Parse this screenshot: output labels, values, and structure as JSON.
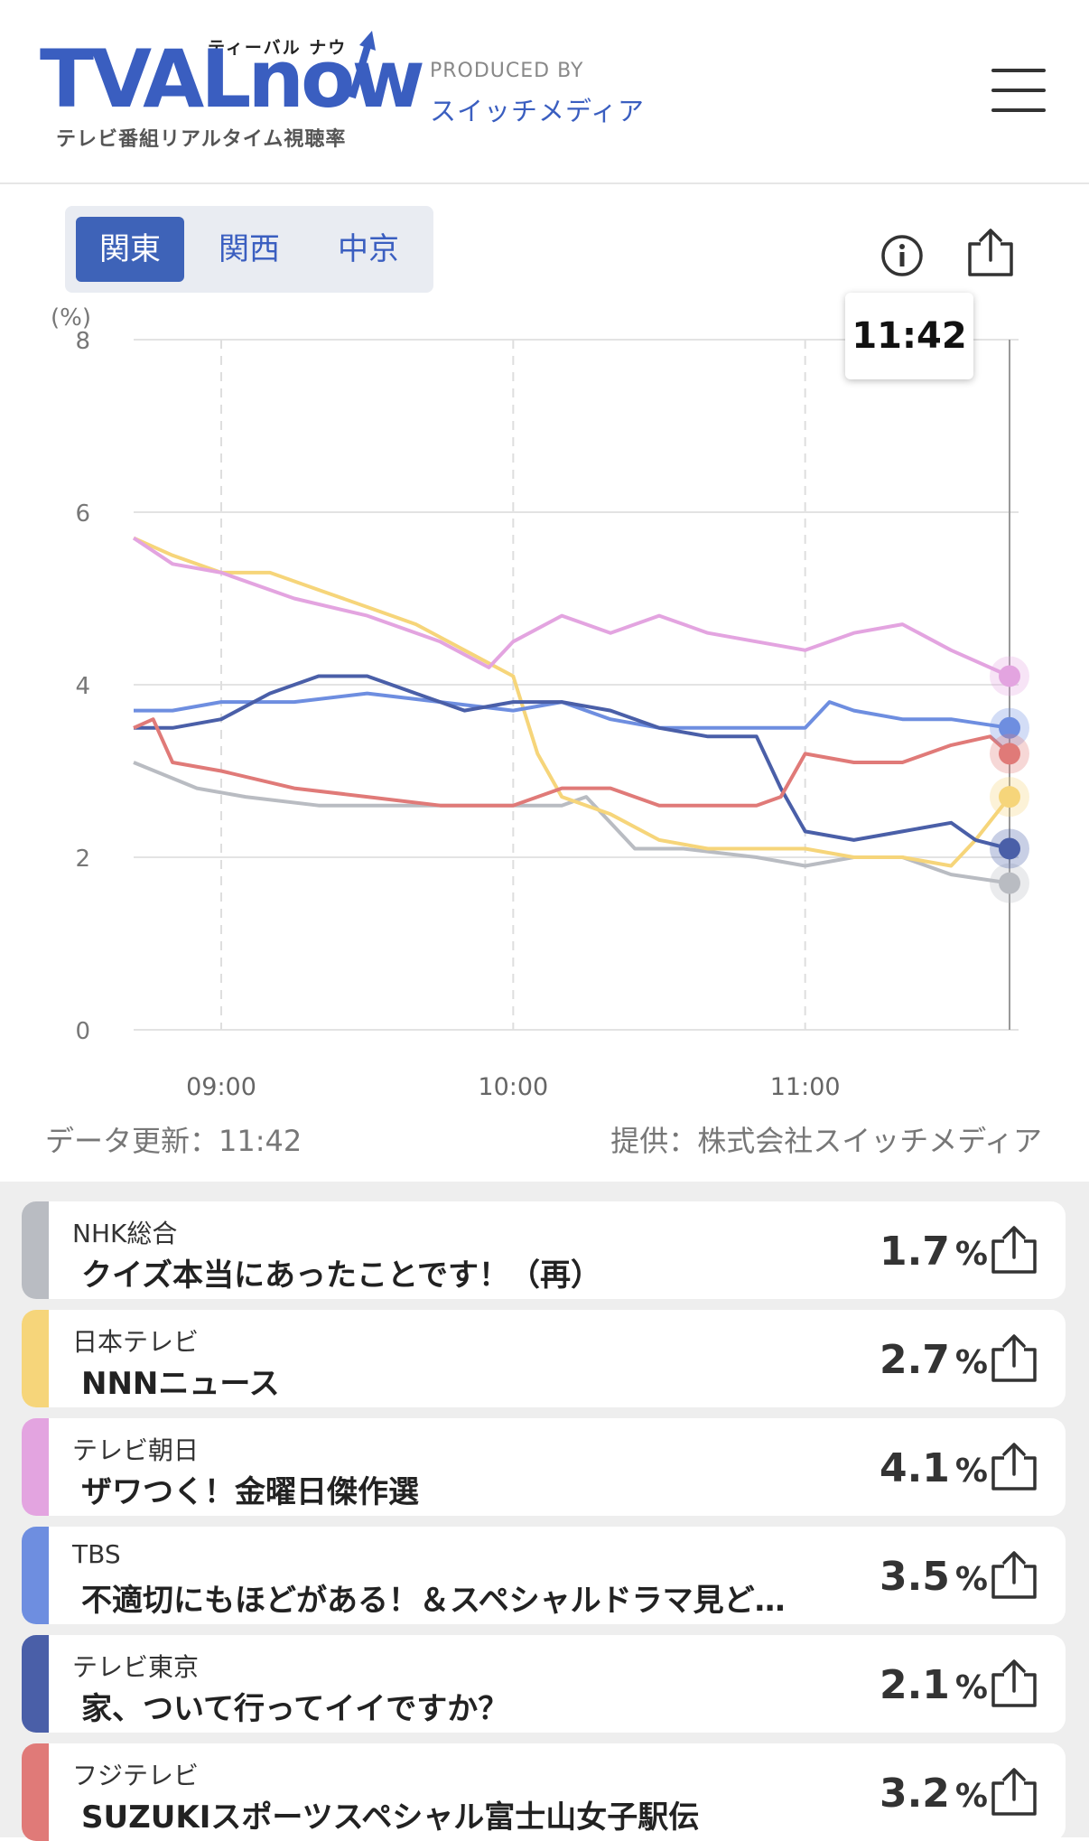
{
  "header": {
    "logo_main": "TVALnow",
    "logo_ruby": "ティーバル ナウ",
    "logo_sub": "テレビ番組リアルタイム視聴率",
    "produced_by": "PRODUCED BY",
    "producer": "スイッチメディア",
    "menu_icon": "hamburger-menu-icon"
  },
  "regions": [
    {
      "label": "関東",
      "active": true
    },
    {
      "label": "関西",
      "active": false
    },
    {
      "label": "中京",
      "active": false
    }
  ],
  "toolbar": {
    "info_icon": "info-circle-icon",
    "share_icon": "share-icon"
  },
  "tooltip_time": "11:42",
  "chart_data": {
    "type": "line",
    "ylabel": "(%)",
    "ylim": [
      0,
      8
    ],
    "yticks": [
      "0",
      "2",
      "4",
      "6",
      "8"
    ],
    "xticks": [
      "09:00",
      "10:00",
      "11:00"
    ],
    "xlim": [
      "08:42",
      "11:42"
    ],
    "grid": true,
    "series": [
      {
        "name": "NHK総合",
        "color": "#b9bcc2",
        "x": [
          "08:42",
          "08:55",
          "09:05",
          "09:20",
          "09:35",
          "09:50",
          "10:00",
          "10:10",
          "10:15",
          "10:25",
          "10:35",
          "10:50",
          "11:00",
          "11:10",
          "11:20",
          "11:30",
          "11:42"
        ],
        "y": [
          3.1,
          2.8,
          2.7,
          2.6,
          2.6,
          2.6,
          2.6,
          2.6,
          2.7,
          2.1,
          2.1,
          2.0,
          1.9,
          2.0,
          2.0,
          1.8,
          1.7
        ]
      },
      {
        "name": "日本テレビ",
        "color": "#f6d57a",
        "x": [
          "08:42",
          "08:50",
          "09:00",
          "09:10",
          "09:20",
          "09:30",
          "09:40",
          "09:50",
          "10:00",
          "10:05",
          "10:10",
          "10:20",
          "10:30",
          "10:40",
          "10:50",
          "11:00",
          "11:10",
          "11:20",
          "11:30",
          "11:35",
          "11:42"
        ],
        "y": [
          5.7,
          5.5,
          5.3,
          5.3,
          5.1,
          4.9,
          4.7,
          4.4,
          4.1,
          3.2,
          2.7,
          2.5,
          2.2,
          2.1,
          2.1,
          2.1,
          2.0,
          2.0,
          1.9,
          2.2,
          2.7
        ]
      },
      {
        "name": "テレビ朝日",
        "color": "#e3a4e0",
        "x": [
          "08:42",
          "08:50",
          "09:00",
          "09:15",
          "09:30",
          "09:45",
          "09:55",
          "10:00",
          "10:10",
          "10:20",
          "10:30",
          "10:40",
          "10:50",
          "11:00",
          "11:10",
          "11:20",
          "11:30",
          "11:42"
        ],
        "y": [
          5.7,
          5.4,
          5.3,
          5.0,
          4.8,
          4.5,
          4.2,
          4.5,
          4.8,
          4.6,
          4.8,
          4.6,
          4.5,
          4.4,
          4.6,
          4.7,
          4.4,
          4.1
        ]
      },
      {
        "name": "TBS",
        "color": "#6e8ee0",
        "x": [
          "08:42",
          "08:50",
          "09:00",
          "09:15",
          "09:30",
          "09:45",
          "10:00",
          "10:10",
          "10:20",
          "10:30",
          "10:40",
          "10:50",
          "11:00",
          "11:05",
          "11:10",
          "11:20",
          "11:30",
          "11:42"
        ],
        "y": [
          3.7,
          3.7,
          3.8,
          3.8,
          3.9,
          3.8,
          3.7,
          3.8,
          3.6,
          3.5,
          3.5,
          3.5,
          3.5,
          3.8,
          3.7,
          3.6,
          3.6,
          3.5
        ]
      },
      {
        "name": "テレビ東京",
        "color": "#4a5fa8",
        "x": [
          "08:42",
          "08:50",
          "09:00",
          "09:10",
          "09:20",
          "09:30",
          "09:40",
          "09:50",
          "10:00",
          "10:10",
          "10:20",
          "10:30",
          "10:40",
          "10:50",
          "10:55",
          "11:00",
          "11:10",
          "11:20",
          "11:30",
          "11:35",
          "11:42"
        ],
        "y": [
          3.5,
          3.5,
          3.6,
          3.9,
          4.1,
          4.1,
          3.9,
          3.7,
          3.8,
          3.8,
          3.7,
          3.5,
          3.4,
          3.4,
          2.8,
          2.3,
          2.2,
          2.3,
          2.4,
          2.2,
          2.1
        ]
      },
      {
        "name": "フジテレビ",
        "color": "#e07a78",
        "x": [
          "08:42",
          "08:46",
          "08:50",
          "09:00",
          "09:15",
          "09:30",
          "09:45",
          "10:00",
          "10:10",
          "10:20",
          "10:30",
          "10:40",
          "10:50",
          "10:55",
          "11:00",
          "11:10",
          "11:20",
          "11:30",
          "11:38",
          "11:42"
        ],
        "y": [
          3.5,
          3.6,
          3.1,
          3.0,
          2.8,
          2.7,
          2.6,
          2.6,
          2.8,
          2.8,
          2.6,
          2.6,
          2.6,
          2.7,
          3.2,
          3.1,
          3.1,
          3.3,
          3.4,
          3.2
        ]
      }
    ]
  },
  "footer": {
    "update": "データ更新：11:42",
    "provider": "提供：株式会社スイッチメディア"
  },
  "programs": [
    {
      "channel": "NHK総合",
      "title": "クイズ本当にあったことです！（再）",
      "value": "1.7",
      "unit": "%",
      "color": "#b9bcc2"
    },
    {
      "channel": "日本テレビ",
      "title": "NNNニュース",
      "value": "2.7",
      "unit": "%",
      "color": "#f6d57a"
    },
    {
      "channel": "テレビ朝日",
      "title": "ザワつく！金曜日傑作選",
      "value": "4.1",
      "unit": "%",
      "color": "#e3a4e0"
    },
    {
      "channel": "TBS",
      "title": "不適切にもほどがある！＆スペシャルドラマ見ど…",
      "value": "3.5",
      "unit": "%",
      "color": "#6e8ee0"
    },
    {
      "channel": "テレビ東京",
      "title": "家、ついて行ってイイですか？",
      "value": "2.1",
      "unit": "%",
      "color": "#4a5fa8"
    },
    {
      "channel": "フジテレビ",
      "title": "SUZUKIスポーツスペシャル富士山女子駅伝",
      "value": "3.2",
      "unit": "%",
      "color": "#e07a78"
    }
  ]
}
